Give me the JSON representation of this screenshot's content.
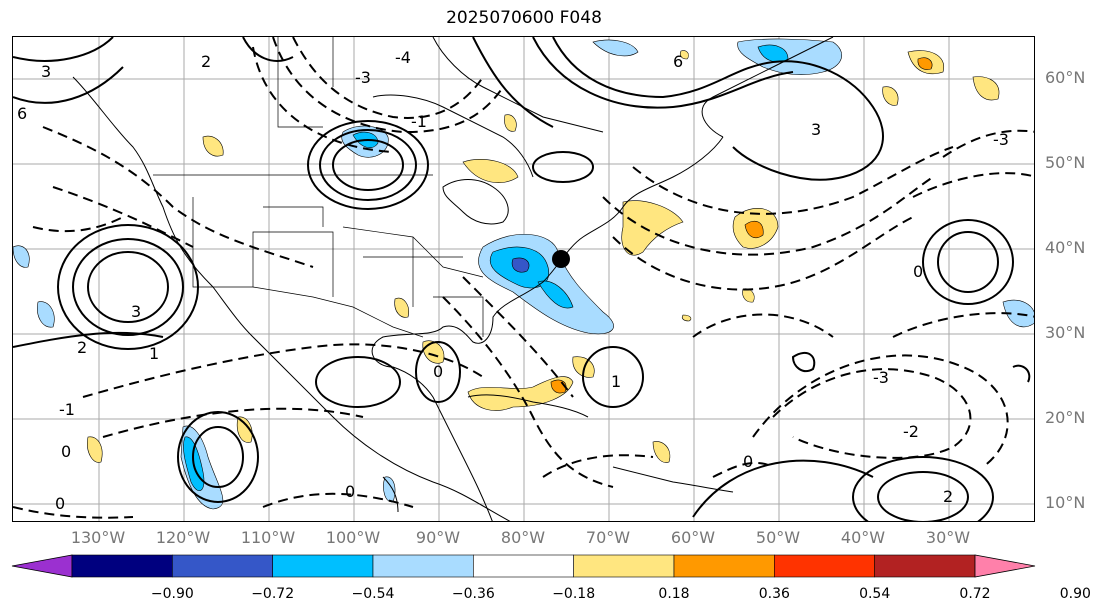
{
  "title": "2025070600 F048",
  "lat_labels": [
    "60°N",
    "50°N",
    "40°N",
    "30°N",
    "20°N",
    "10°N"
  ],
  "lon_labels": [
    "130°W",
    "120°W",
    "110°W",
    "100°W",
    "90°W",
    "80°W",
    "70°W",
    "60°W",
    "50°W",
    "40°W",
    "30°W"
  ],
  "colorbar": {
    "ticks": [
      "−0.90",
      "−0.72",
      "−0.54",
      "−0.36",
      "−0.18",
      "0.18",
      "0.36",
      "0.54",
      "0.72",
      "0.90"
    ],
    "colors": [
      "#9b30d0",
      "#00007f",
      "#3557c8",
      "#00bfff",
      "#a9dcff",
      "#ffffff",
      "#ffe680",
      "#ff9900",
      "#ff3300",
      "#b22222",
      "#ff80aa"
    ]
  },
  "contour_labels": [
    "-4",
    "-3",
    "-2",
    "-1",
    "0",
    "1",
    "2",
    "3",
    "6"
  ],
  "marker": "black-dot"
}
